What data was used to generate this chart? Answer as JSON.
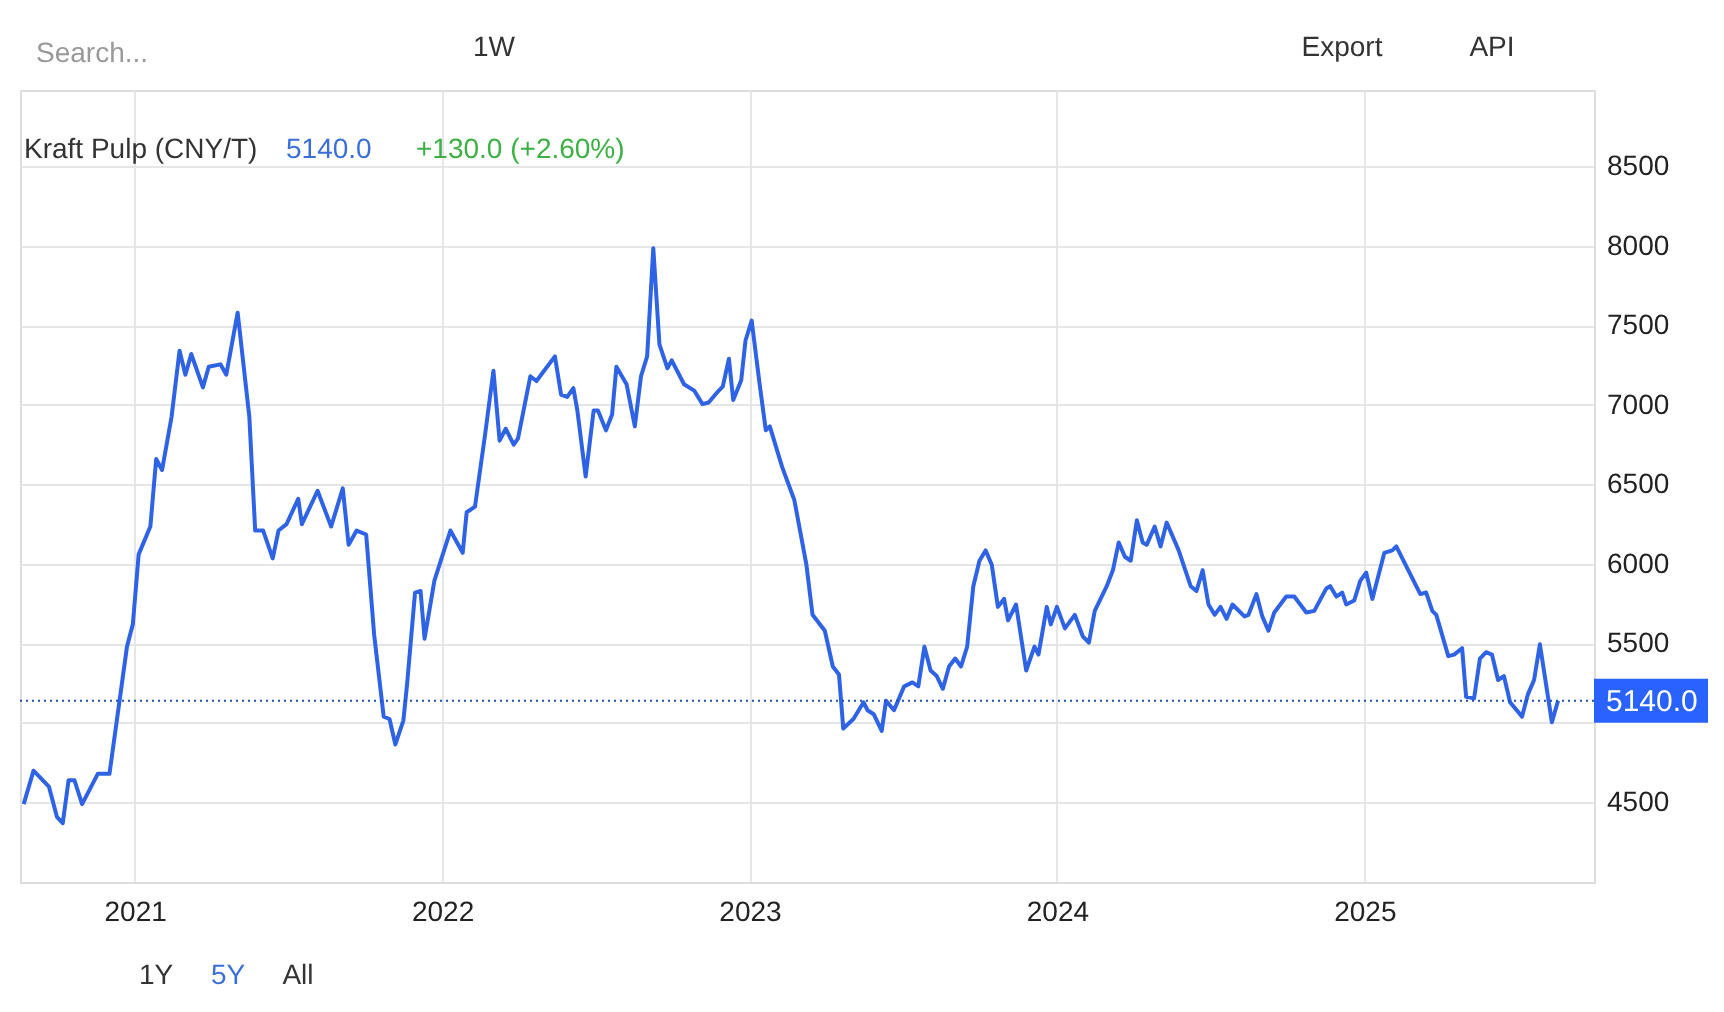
{
  "chart_data": {
    "type": "line",
    "title": "Kraft Pulp (CNY/T)",
    "annotations": [
      "5140.0",
      "+130.0 (+2.60%)",
      "Search...",
      "1W",
      "Export",
      "API",
      "1Y",
      "5Y",
      "All"
    ],
    "x": [
      2020.639,
      2020.671,
      2020.721,
      2020.747,
      2020.766,
      2020.785,
      2020.804,
      2020.829,
      2020.88,
      2020.918,
      2020.975,
      2020.994,
      2021.013,
      2021.051,
      2021.07,
      2021.089,
      2021.12,
      2021.146,
      2021.165,
      2021.184,
      2021.222,
      2021.241,
      2021.279,
      2021.298,
      2021.335,
      2021.373,
      2021.392,
      2021.418,
      2021.449,
      2021.468,
      2021.494,
      2021.532,
      2021.544,
      2021.595,
      2021.639,
      2021.677,
      2021.696,
      2021.722,
      2021.753,
      2021.779,
      2021.81,
      2021.829,
      2021.848,
      2021.874,
      2021.886,
      2021.912,
      2021.93,
      2021.943,
      2021.975,
      2022.027,
      2022.067,
      2022.08,
      2022.107,
      2022.14,
      2022.167,
      2022.187,
      2022.207,
      2022.233,
      2022.247,
      2022.287,
      2022.307,
      2022.367,
      2022.387,
      2022.407,
      2022.427,
      2022.44,
      2022.467,
      2022.493,
      2022.507,
      2022.533,
      2022.553,
      2022.567,
      2022.6,
      2022.627,
      2022.647,
      2022.667,
      2022.687,
      2022.707,
      2022.733,
      2022.747,
      2022.787,
      2022.82,
      2022.847,
      2022.867,
      2022.9,
      2022.913,
      2022.933,
      2022.947,
      2022.973,
      2022.987,
      2023.007,
      2023.033,
      2023.053,
      2023.066,
      2023.106,
      2023.146,
      2023.185,
      2023.205,
      2023.245,
      2023.271,
      2023.291,
      2023.305,
      2023.338,
      2023.371,
      2023.384,
      2023.404,
      2023.43,
      2023.444,
      2023.47,
      2023.503,
      2023.53,
      2023.549,
      2023.569,
      2023.589,
      2023.609,
      2023.629,
      2023.649,
      2023.669,
      2023.688,
      2023.708,
      2023.728,
      2023.748,
      2023.768,
      2023.788,
      2023.808,
      2023.828,
      2023.841,
      2023.867,
      2023.9,
      2023.927,
      2023.94,
      2023.967,
      2023.98,
      2024.0,
      2024.026,
      2024.058,
      2024.084,
      2024.104,
      2024.123,
      2024.162,
      2024.182,
      2024.201,
      2024.221,
      2024.24,
      2024.26,
      2024.279,
      2024.292,
      2024.318,
      2024.337,
      2024.357,
      2024.396,
      2024.435,
      2024.454,
      2024.474,
      2024.493,
      2024.513,
      2024.532,
      2024.552,
      2024.571,
      2024.61,
      2024.623,
      2024.649,
      2024.668,
      2024.688,
      2024.707,
      2024.746,
      2024.772,
      2024.811,
      2024.837,
      2024.876,
      2024.889,
      2024.909,
      2024.928,
      2024.941,
      2024.967,
      2024.987,
      2025.006,
      2025.026,
      2025.065,
      2025.091,
      2025.104,
      2025.117,
      2025.182,
      2025.201,
      2025.221,
      2025.234,
      2025.273,
      2025.292,
      2025.318,
      2025.331,
      2025.357,
      2025.376,
      2025.396,
      2025.415,
      2025.435,
      2025.454,
      2025.474,
      2025.513,
      2025.532,
      2025.552,
      2025.571,
      2025.61,
      2025.63
    ],
    "series": [
      {
        "color": "#2f63e6",
        "values": [
          4490,
          4700,
          4600,
          4410,
          4370,
          4640,
          4640,
          4490,
          4680,
          4680,
          5480,
          5620,
          6060,
          6235,
          6660,
          6590,
          6925,
          7340,
          7190,
          7320,
          7110,
          7240,
          7255,
          7190,
          7580,
          6925,
          6210,
          6210,
          6035,
          6210,
          6250,
          6410,
          6250,
          6460,
          6235,
          6475,
          6120,
          6210,
          6185,
          5555,
          5040,
          5025,
          4865,
          5015,
          5240,
          5820,
          5830,
          5530,
          5895,
          6210,
          6070,
          6325,
          6360,
          6815,
          7215,
          6775,
          6850,
          6750,
          6790,
          7180,
          7150,
          7305,
          7065,
          7050,
          7105,
          6965,
          6550,
          6965,
          6965,
          6840,
          6940,
          7240,
          7130,
          6865,
          7180,
          7305,
          7985,
          7380,
          7230,
          7280,
          7130,
          7090,
          7005,
          7015,
          7090,
          7115,
          7290,
          7030,
          7155,
          7405,
          7530,
          7130,
          6840,
          6865,
          6610,
          6400,
          5995,
          5680,
          5580,
          5355,
          5305,
          4965,
          5025,
          5130,
          5080,
          5055,
          4950,
          5140,
          5080,
          5230,
          5255,
          5230,
          5480,
          5330,
          5295,
          5215,
          5355,
          5405,
          5355,
          5480,
          5860,
          6020,
          6085,
          5995,
          5730,
          5780,
          5645,
          5745,
          5330,
          5480,
          5430,
          5730,
          5620,
          5730,
          5595,
          5680,
          5545,
          5505,
          5705,
          5860,
          5960,
          6135,
          6045,
          6020,
          6275,
          6135,
          6120,
          6235,
          6110,
          6260,
          6085,
          5860,
          5830,
          5960,
          5745,
          5680,
          5730,
          5655,
          5745,
          5670,
          5680,
          5810,
          5670,
          5580,
          5695,
          5795,
          5795,
          5695,
          5705,
          5845,
          5860,
          5795,
          5820,
          5745,
          5770,
          5895,
          5945,
          5780,
          6070,
          6085,
          6110,
          6060,
          5810,
          5820,
          5705,
          5680,
          5420,
          5430,
          5470,
          5165,
          5155,
          5405,
          5445,
          5430,
          5270,
          5295,
          5130,
          5040,
          5180,
          5270,
          5495,
          5005,
          5140
        ]
      }
    ],
    "xlim": [
      2020.627,
      2025.747
    ],
    "xticks": [
      2021,
      2022,
      2023,
      2024,
      2025
    ],
    "ylim": [
      4000,
      8980
    ],
    "yticks": [
      4500,
      {
        "value": 5000,
        "label": null
      },
      5500,
      6000,
      6500,
      7000,
      7500,
      8000,
      8500
    ],
    "ref_lines": [
      {
        "axis": "y",
        "value": 5140,
        "label": "5140.0",
        "color": "#1d4fb8",
        "line_style": "dotted"
      }
    ],
    "grid": true,
    "marker": "none",
    "line_style": "solid"
  }
}
